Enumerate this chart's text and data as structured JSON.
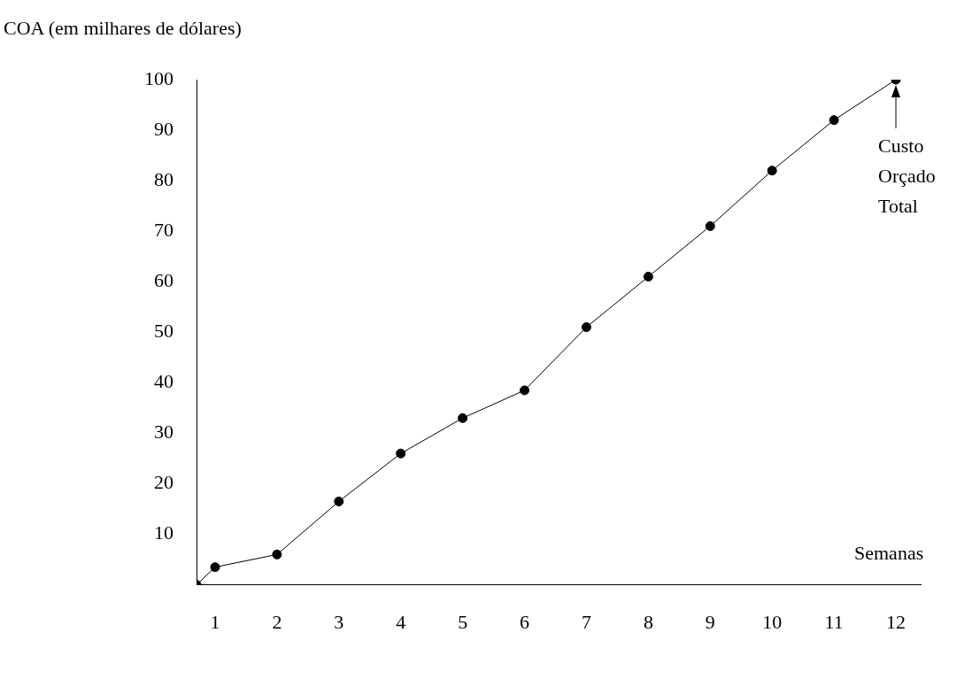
{
  "chart_data": {
    "type": "line",
    "xlabel": "Semanas",
    "ylabel": "COA (em milhares de dólares)",
    "xlim": [
      0.7,
      12.4
    ],
    "xticks": [
      1,
      2,
      3,
      4,
      5,
      6,
      7,
      8,
      9,
      10,
      11,
      12
    ],
    "ylim": [
      0,
      100
    ],
    "yticks": [
      10,
      20,
      30,
      40,
      50,
      60,
      70,
      80,
      90,
      100
    ],
    "series": [
      {
        "color": "#000000",
        "x": [
          0.7,
          1,
          2,
          3,
          4,
          5,
          6,
          7,
          8,
          9,
          10,
          11,
          12
        ],
        "values": [
          0,
          3.5,
          6,
          16.5,
          26,
          33,
          38.5,
          51,
          61,
          71,
          82,
          92,
          100
        ],
        "marker": "circle"
      }
    ],
    "grid": false,
    "legend": false,
    "annotations": [
      {
        "text": "Custo\nOrçado\nTotal",
        "x": 12,
        "y": 100
      }
    ]
  }
}
